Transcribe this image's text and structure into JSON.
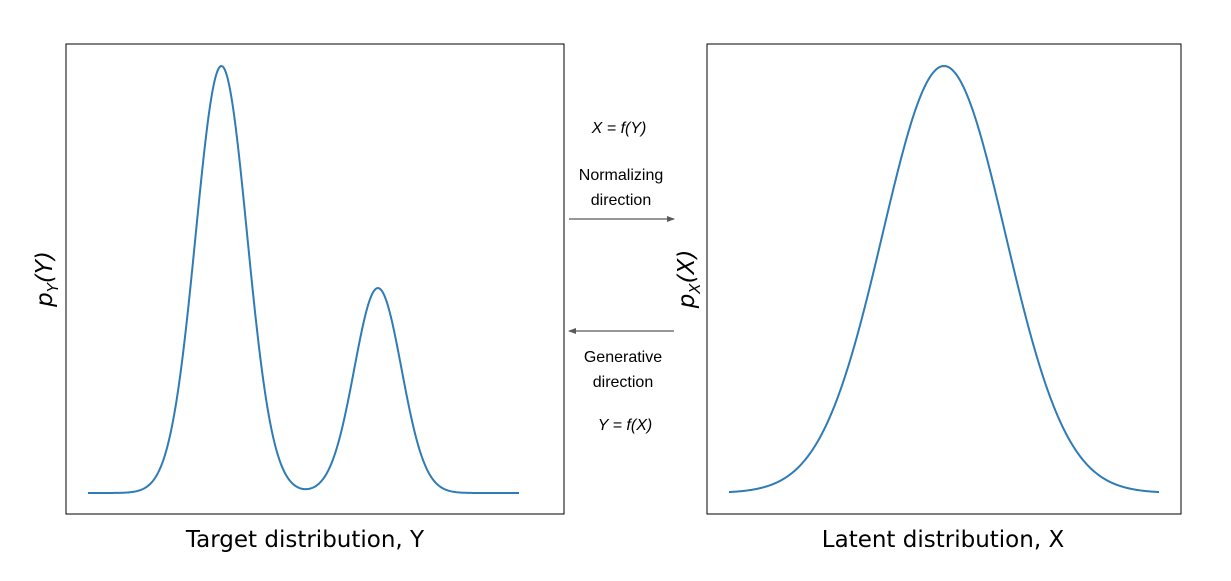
{
  "chart_data": [
    {
      "type": "line",
      "xlabel": "Target distribution, Y",
      "ylabel_base": "p",
      "ylabel_sub": "Y",
      "ylabel_arg": "(Y)",
      "curve": "mixture",
      "series": [
        {
          "components": [
            {
              "weight": 1.0,
              "mean": -1.4,
              "sd": 0.5
            },
            {
              "weight": 0.48,
              "mean": 1.65,
              "sd": 0.46
            }
          ]
        }
      ],
      "xlim": [
        -6,
        8.8
      ],
      "ylim": [
        -0.04,
        0.84
      ],
      "grid": false
    },
    {
      "type": "line",
      "xlabel": "Latent distribution, X",
      "ylabel_base": "p",
      "ylabel_sub": "X",
      "ylabel_arg": "(X)",
      "curve": "normal",
      "series": [
        {
          "components": [
            {
              "weight": 1.0,
              "mean": 0.0,
              "sd": 1.0
            }
          ]
        }
      ],
      "xlim": [
        -4.9,
        4.6
      ],
      "ylim": [
        -0.02,
        0.42
      ],
      "grid": false
    }
  ],
  "middle": {
    "top_formula": "X = f(Y)",
    "normalizing_line1": "Normalizing",
    "normalizing_line2": "direction",
    "generative_line1": "Generative",
    "generative_line2": "direction",
    "bottom_formula": "Y = f(X)"
  },
  "colors": {
    "curve": "#2f7bb6",
    "arrow": "#595959",
    "frame": "#000000"
  }
}
